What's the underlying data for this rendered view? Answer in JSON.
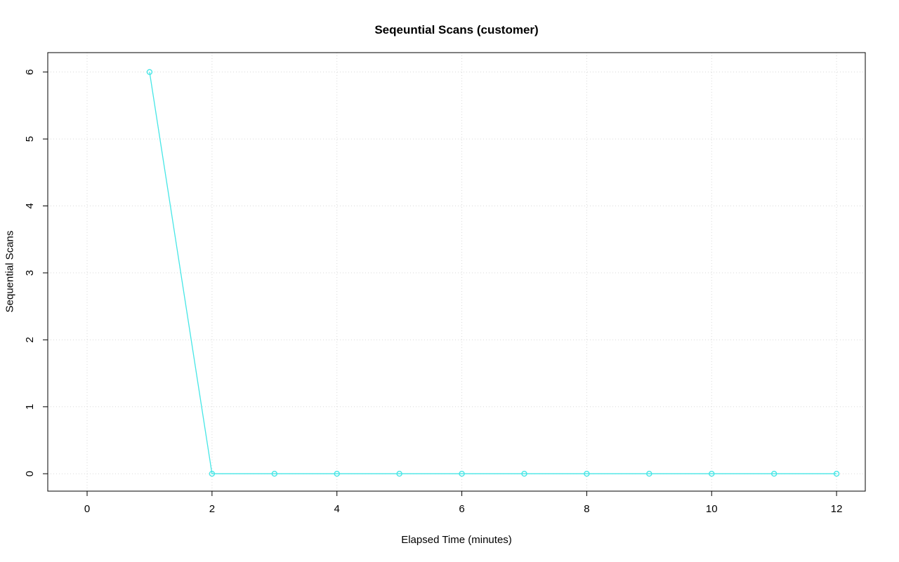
{
  "chart_data": {
    "type": "line",
    "title": "Seqeuntial Scans (customer)",
    "xlabel": "Elapsed Time (minutes)",
    "ylabel": "Sequential Scans",
    "x": [
      1,
      2,
      3,
      4,
      5,
      6,
      7,
      8,
      9,
      10,
      11,
      12
    ],
    "y": [
      6,
      0,
      0,
      0,
      0,
      0,
      0,
      0,
      0,
      0,
      0,
      0
    ],
    "xticks": [
      0,
      2,
      4,
      6,
      8,
      10,
      12
    ],
    "yticks": [
      0,
      1,
      2,
      3,
      4,
      5,
      6
    ],
    "xlim": [
      -0.63,
      12.46
    ],
    "ylim": [
      -0.26,
      6.29
    ],
    "grid": true,
    "grid_style": "dotted",
    "legend": "none",
    "marker": "open-circle",
    "line_style": "solid",
    "colors": {
      "line": "#45E6E6",
      "marker": "#45E6E6",
      "grid": "#D9D9D9",
      "axis": "#000000",
      "text": "#000000",
      "background": "#FFFFFF"
    }
  }
}
